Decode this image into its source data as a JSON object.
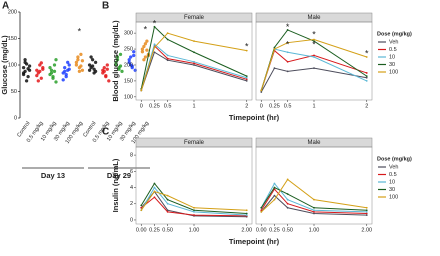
{
  "chart_data": [
    {
      "type": "strip",
      "panel": "A",
      "y_label": "Glucose (mg/dL)",
      "ylim": [
        0,
        200
      ],
      "yticks": [
        0,
        50,
        100,
        150,
        200
      ],
      "groups": [
        {
          "label": "Day 13",
          "categories": [
            "Control",
            "0.5 mg/kg",
            "10 mg/kg",
            "30 mg/kg",
            "100 mg/kg"
          ],
          "colors": [
            "#111111",
            "#e41a1c",
            "#2ca02c",
            "#1f3fff",
            "#e88b1f"
          ],
          "values": [
            [
              95,
              88,
              102,
              78,
              90,
              85,
              110,
              70,
              93,
              98,
              82,
              105
            ],
            [
              90,
              85,
              100,
              75,
              95,
              80,
              70,
              88,
              104,
              92
            ],
            [
              82,
              90,
              75,
              100,
              68,
              95,
              85,
              78,
              88,
              110
            ],
            [
              85,
              95,
              78,
              90,
              100,
              72,
              88,
              82,
              105,
              92
            ],
            [
              100,
              110,
              95,
              120,
              90,
              105,
              115,
              88,
              98,
              108
            ]
          ],
          "annotations": [
            {
              "text": "*",
              "x": "100 mg/kg",
              "y": 162
            }
          ]
        },
        {
          "label": "Day 29",
          "categories": [
            "Control",
            "0.5 mg/kg",
            "10 mg/kg",
            "30 mg/kg",
            "100 mg/kg"
          ],
          "colors": [
            "#111111",
            "#e41a1c",
            "#2ca02c",
            "#1f3fff",
            "#e88b1f"
          ],
          "values": [
            [
              100,
              95,
              110,
              85,
              105,
              90,
              115,
              98,
              92,
              88
            ],
            [
              85,
              95,
              78,
              100,
              70,
              90,
              88,
              80,
              92
            ],
            [
              100,
              110,
              95,
              120,
              88,
              105,
              115,
              92,
              98
            ],
            [
              105,
              115,
              95,
              125,
              90,
              110,
              100,
              98,
              118
            ],
            [
              125,
              135,
              115,
              145,
              120,
              130,
              110,
              140,
              128,
              118
            ]
          ],
          "annotations": [
            {
              "text": "*",
              "x": "100 mg/kg",
              "y": 166
            }
          ]
        }
      ]
    },
    {
      "type": "line",
      "panel": "B",
      "y_label": "Blood glucose (mg/dL)",
      "x_label": "Timepoint (hr)",
      "legend_title": "Dose (mg/kg)",
      "x": [
        0,
        0.25,
        0.5,
        1,
        2
      ],
      "xlim": [
        -0.1,
        2.1
      ],
      "xticks": [
        0,
        0.25,
        0.5,
        1,
        2
      ],
      "ylim": [
        90,
        335
      ],
      "yticks": [
        100,
        150,
        200,
        250,
        300
      ],
      "facets": [
        {
          "title": "Female",
          "annotations": [
            {
              "text": "*",
              "x": 0.25,
              "y": 328
            },
            {
              "text": "*",
              "x": 2,
              "y": 256
            }
          ]
        },
        {
          "title": "Male",
          "annotations": [
            {
              "text": "*",
              "x": 0.5,
              "y": 318
            },
            {
              "text": "*",
              "x": 0.5,
              "y": 262
            },
            {
              "text": "*",
              "x": 1,
              "y": 294
            },
            {
              "text": "*",
              "x": 1,
              "y": 262
            },
            {
              "text": "*",
              "x": 2,
              "y": 234
            }
          ]
        }
      ],
      "series": [
        {
          "name": "Veh",
          "color": "#4d4d5c",
          "values": [
            [
              120,
              240,
              215,
              200,
              150
            ],
            [
              115,
              190,
              180,
              190,
              160
            ]
          ]
        },
        {
          "name": "0.5",
          "color": "#d7191c",
          "values": [
            [
              120,
              260,
              220,
              205,
              155
            ],
            [
              120,
              245,
              210,
              230,
              175
            ]
          ]
        },
        {
          "name": "10",
          "color": "#5bb8d6",
          "values": [
            [
              120,
              265,
              230,
              210,
              160
            ],
            [
              120,
              250,
              240,
              225,
              150
            ]
          ]
        },
        {
          "name": "30",
          "color": "#1b5e20",
          "values": [
            [
              125,
              320,
              280,
              240,
              165
            ],
            [
              120,
              255,
              310,
              275,
              165
            ]
          ]
        },
        {
          "name": "100",
          "color": "#d4a017",
          "values": [
            [
              120,
              255,
              300,
              275,
              245
            ],
            [
              120,
              250,
              270,
              280,
              225
            ]
          ]
        }
      ]
    },
    {
      "type": "line",
      "panel": "C",
      "y_label": "Insulin (ng/mL)",
      "x_label": "Timepoint (hr)",
      "legend_title": "Dose (mg/kg)",
      "x": [
        0,
        0.25,
        0.5,
        1,
        2
      ],
      "xlim": [
        -0.1,
        2.1
      ],
      "xticks": [
        {
          "value": 0,
          "label": "0.00"
        },
        {
          "value": 0.25,
          "label": "0.25"
        },
        {
          "value": 0.5,
          "label": "0.50"
        },
        {
          "value": 1,
          "label": "1.00"
        },
        {
          "value": 2,
          "label": "2.00"
        }
      ],
      "ylim": [
        -0.5,
        9
      ],
      "yticks": [
        0,
        2,
        4,
        6,
        8
      ],
      "facets": [
        {
          "title": "Female"
        },
        {
          "title": "Male"
        }
      ],
      "series": [
        {
          "name": "Veh",
          "color": "#4d4d5c",
          "values": [
            [
              1.5,
              3.5,
              1.2,
              0.5,
              0.4
            ],
            [
              1.0,
              3.0,
              1.5,
              0.8,
              0.6
            ]
          ]
        },
        {
          "name": "0.5",
          "color": "#d7191c",
          "values": [
            [
              1.5,
              2.8,
              1.0,
              0.6,
              0.5
            ],
            [
              1.2,
              3.8,
              2.0,
              1.0,
              0.8
            ]
          ]
        },
        {
          "name": "10",
          "color": "#5bb8d6",
          "values": [
            [
              1.2,
              4.0,
              2.0,
              1.0,
              0.6
            ],
            [
              1.5,
              4.5,
              2.5,
              1.2,
              1.0
            ]
          ]
        },
        {
          "name": "30",
          "color": "#1b5e20",
          "values": [
            [
              1.8,
              4.5,
              2.5,
              1.2,
              0.8
            ],
            [
              1.5,
              4.0,
              3.2,
              1.5,
              1.2
            ]
          ]
        },
        {
          "name": "100",
          "color": "#d4a017",
          "values": [
            [
              1.2,
              3.5,
              3.0,
              1.5,
              1.2
            ],
            [
              1.0,
              2.5,
              5.0,
              2.5,
              1.5
            ]
          ]
        }
      ]
    }
  ]
}
